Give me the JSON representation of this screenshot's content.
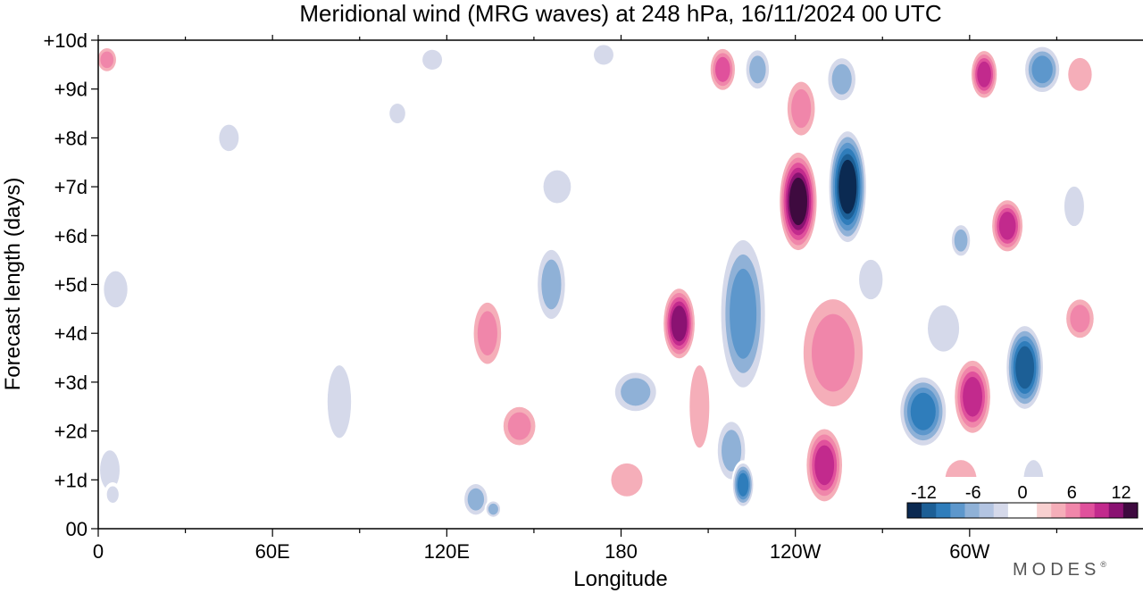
{
  "chart_data": {
    "type": "heatmap",
    "title": "Meridional wind (MRG waves) at  248 hPa,  16/11/2024  00 UTC",
    "xlabel": "Longitude",
    "ylabel": "Forecast length (days)",
    "x_ticks": [
      "0",
      "60E",
      "120E",
      "180",
      "120W",
      "60W"
    ],
    "y_ticks": [
      "00",
      "+1d",
      "+2d",
      "+3d",
      "+4d",
      "+5d",
      "+6d",
      "+7d",
      "+8d",
      "+9d",
      "+10d"
    ],
    "xlim": [
      0,
      360
    ],
    "ylim": [
      0,
      10
    ],
    "colorbar": {
      "ticks": [
        "-12",
        "-6",
        "0",
        "6",
        "12"
      ],
      "range": [
        -14,
        14
      ],
      "colors": [
        "#0b2a52",
        "#1c5f96",
        "#2f7dbb",
        "#5d97cc",
        "#8fb1d7",
        "#b3c4e1",
        "#d5d9ea",
        "#ffffff",
        "#ffffff",
        "#f8d0d0",
        "#f5aeb9",
        "#f086aa",
        "#e0519c",
        "#c22a8d",
        "#8a1272",
        "#3e0a3f"
      ]
    },
    "features": [
      {
        "lon": 200,
        "day": 4.2,
        "value": 12,
        "w": 6,
        "h": 1.6
      },
      {
        "lon": 207,
        "day": 2.5,
        "value": 4,
        "w": 5,
        "h": 2.5
      },
      {
        "lon": 222,
        "day": 4.4,
        "value": -8,
        "w": 9,
        "h": 3.6
      },
      {
        "lon": 218,
        "day": 1.6,
        "value": -6,
        "w": 6,
        "h": 1.5
      },
      {
        "lon": 222,
        "day": 0.9,
        "value": -10,
        "w": 4,
        "h": 1.0
      },
      {
        "lon": 215,
        "day": 9.4,
        "value": 8,
        "w": 5,
        "h": 1.0
      },
      {
        "lon": 227,
        "day": 9.4,
        "value": -5,
        "w": 5,
        "h": 1.0
      },
      {
        "lon": 241,
        "day": 6.7,
        "value": 13,
        "w": 7,
        "h": 2.2
      },
      {
        "lon": 242,
        "day": 8.6,
        "value": 6,
        "w": 6,
        "h": 1.4
      },
      {
        "lon": 253,
        "day": 3.6,
        "value": 5,
        "w": 13,
        "h": 2.8
      },
      {
        "lon": 250,
        "day": 1.3,
        "value": 10,
        "w": 7,
        "h": 1.7
      },
      {
        "lon": 258,
        "day": 7.0,
        "value": -13,
        "w": 7,
        "h": 2.5
      },
      {
        "lon": 256,
        "day": 9.2,
        "value": -5,
        "w": 6,
        "h": 1.1
      },
      {
        "lon": 266,
        "day": 5.1,
        "value": -3,
        "w": 6,
        "h": 1.2
      },
      {
        "lon": 284,
        "day": 2.4,
        "value": -10,
        "w": 9,
        "h": 1.6
      },
      {
        "lon": 291,
        "day": 4.1,
        "value": -3,
        "w": 8,
        "h": 1.4
      },
      {
        "lon": 301,
        "day": 2.7,
        "value": 9,
        "w": 7,
        "h": 1.7
      },
      {
        "lon": 297,
        "day": 1.0,
        "value": 3,
        "w": 8,
        "h": 1.2
      },
      {
        "lon": 319,
        "day": 3.3,
        "value": -12,
        "w": 7,
        "h": 1.9
      },
      {
        "lon": 322,
        "day": 1.0,
        "value": -4,
        "w": 5,
        "h": 1.2
      },
      {
        "lon": 313,
        "day": 6.2,
        "value": 9,
        "w": 6,
        "h": 1.2
      },
      {
        "lon": 297,
        "day": 5.9,
        "value": -5,
        "w": 4,
        "h": 0.8
      },
      {
        "lon": 305,
        "day": 9.3,
        "value": 9,
        "w": 5,
        "h": 1.1
      },
      {
        "lon": 325,
        "day": 9.4,
        "value": -7,
        "w": 7,
        "h": 1.1
      },
      {
        "lon": 338,
        "day": 9.3,
        "value": 3,
        "w": 6,
        "h": 1.0
      },
      {
        "lon": 336,
        "day": 6.6,
        "value": -3,
        "w": 5,
        "h": 1.2
      },
      {
        "lon": 338,
        "day": 4.3,
        "value": 5,
        "w": 6,
        "h": 1.0
      },
      {
        "lon": 349,
        "day": 2.4,
        "value": 2,
        "w": 7,
        "h": 1.2
      },
      {
        "lon": 156,
        "day": 5.0,
        "value": -6,
        "w": 6,
        "h": 1.8
      },
      {
        "lon": 158,
        "day": 7.0,
        "value": -3,
        "w": 7,
        "h": 1.0
      },
      {
        "lon": 134,
        "day": 4.0,
        "value": 6,
        "w": 6,
        "h": 1.6
      },
      {
        "lon": 145,
        "day": 2.1,
        "value": 6,
        "w": 7,
        "h": 1.0
      },
      {
        "lon": 130,
        "day": 0.6,
        "value": -6,
        "w": 5,
        "h": 0.8
      },
      {
        "lon": 136,
        "day": 0.4,
        "value": -6,
        "w": 3,
        "h": 0.4
      },
      {
        "lon": 185,
        "day": 2.8,
        "value": -5,
        "w": 9,
        "h": 1.0
      },
      {
        "lon": 182,
        "day": 1.0,
        "value": 3,
        "w": 8,
        "h": 1.0
      },
      {
        "lon": 6,
        "day": 4.9,
        "value": -4,
        "w": 6,
        "h": 1.1
      },
      {
        "lon": 4,
        "day": 1.2,
        "value": -3,
        "w": 5,
        "h": 1.2
      },
      {
        "lon": 5,
        "day": 0.7,
        "value": -4,
        "w": 3,
        "h": 0.5
      },
      {
        "lon": 3,
        "day": 9.6,
        "value": 6,
        "w": 4,
        "h": 0.6
      },
      {
        "lon": 28,
        "day": 6.0,
        "value": 2,
        "w": 8,
        "h": 2.2
      },
      {
        "lon": 33,
        "day": 2.8,
        "value": 2,
        "w": 7,
        "h": 2.0
      },
      {
        "lon": 45,
        "day": 8.0,
        "value": -3,
        "w": 5,
        "h": 0.8
      },
      {
        "lon": 50,
        "day": 5.3,
        "value": 2,
        "w": 4,
        "h": 0.6
      },
      {
        "lon": 66,
        "day": 7.6,
        "value": 2,
        "w": 6,
        "h": 1.0
      },
      {
        "lon": 74,
        "day": 9.4,
        "value": 2,
        "w": 5,
        "h": 0.9
      },
      {
        "lon": 83,
        "day": 2.6,
        "value": -3,
        "w": 6,
        "h": 2.2
      },
      {
        "lon": 100,
        "day": 3.1,
        "value": 2,
        "w": 5,
        "h": 2.6
      },
      {
        "lon": 103,
        "day": 8.5,
        "value": -3,
        "w": 4,
        "h": 0.6
      },
      {
        "lon": 115,
        "day": 9.6,
        "value": -4,
        "w": 5,
        "h": 0.6
      },
      {
        "lon": 168,
        "day": 9.2,
        "value": 2,
        "w": 6,
        "h": 1.0
      },
      {
        "lon": 174,
        "day": 9.7,
        "value": -3,
        "w": 5,
        "h": 0.6
      },
      {
        "lon": 174,
        "day": 6.4,
        "value": 2,
        "w": 3,
        "h": 0.7
      }
    ]
  },
  "branding": {
    "logo_text": "MODES",
    "mark": "®"
  }
}
